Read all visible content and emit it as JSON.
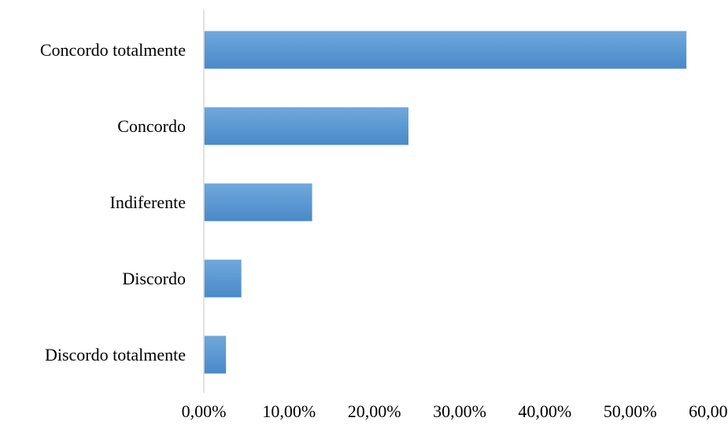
{
  "chart_data": {
    "type": "bar",
    "orientation": "horizontal",
    "categories": [
      "Concordo totalmente",
      "Concordo",
      "Indiferente",
      "Discordo",
      "Discordo totalmente"
    ],
    "values": [
      0.566,
      0.24,
      0.127,
      0.044,
      0.026
    ],
    "xlim": [
      0,
      0.6
    ],
    "x_ticks": [
      0,
      0.1,
      0.2,
      0.3,
      0.4,
      0.5,
      0.6
    ],
    "x_tick_labels": [
      "0,00%",
      "10,00%",
      "20,00%",
      "30,00%",
      "40,00%",
      "50,00%",
      "60,00%"
    ],
    "title": "",
    "xlabel": "",
    "ylabel": "",
    "grid": false,
    "legend": "none",
    "bar_color": "#5b9bd5",
    "bar_color_light": "#6fa8dc",
    "bar_color_dark": "#4a89c8",
    "axis_color": "#d9d9d9"
  }
}
